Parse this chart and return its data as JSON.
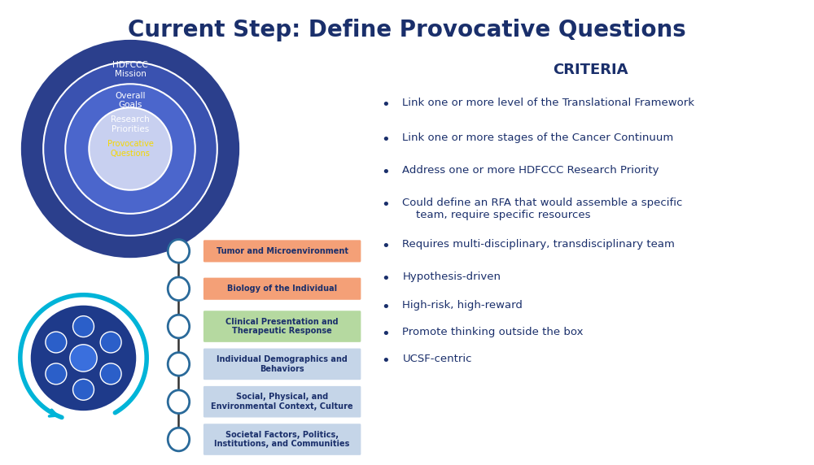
{
  "title": "Current Step: Define Provocative Questions",
  "title_color": "#1a2f6b",
  "title_fontsize": 20,
  "bg_color": "#ffffff",
  "nested_ellipses": [
    {
      "label": "HDFCCC\nMission",
      "color": "#2b3f8c",
      "text_color": "#ffffff"
    },
    {
      "label": "Overall\nGoals",
      "color": "#3a52b0",
      "text_color": "#ffffff"
    },
    {
      "label": "Research\nPriorities",
      "color": "#4b66cc",
      "text_color": "#ffffff"
    },
    {
      "label": "Provocative\nQuestions",
      "color": "#c8d0f0",
      "text_color": "#f5d800"
    }
  ],
  "criteria_header": "CRITERIA",
  "criteria_color": "#1a2f6b",
  "criteria_items": [
    "Link one or more level of the Translational Framework",
    "Link one or more stages of the Cancer Continuum",
    "Address one or more HDFCCC Research Priority",
    "Could define an RFA that would assemble a specific\n    team, require specific resources",
    "Requires multi-disciplinary, transdisciplinary team",
    "Hypothesis-driven",
    "High-risk, high-reward",
    "Promote thinking outside the box",
    "UCSF-centric"
  ],
  "chain_labels": [
    {
      "text": "Tumor and Microenvironment",
      "color": "#f4a077"
    },
    {
      "text": "Biology of the Individual",
      "color": "#f4a077"
    },
    {
      "text": "Clinical Presentation and\nTherapeutic Response",
      "color": "#b5d9a0"
    },
    {
      "text": "Individual Demographics and\nBehaviors",
      "color": "#c5d5e8"
    },
    {
      "text": "Social, Physical, and\nEnvironmental Context, Culture",
      "color": "#c5d5e8"
    },
    {
      "text": "Societal Factors, Politics,\nInstitutions, and Communities",
      "color": "#c5d5e8"
    }
  ]
}
